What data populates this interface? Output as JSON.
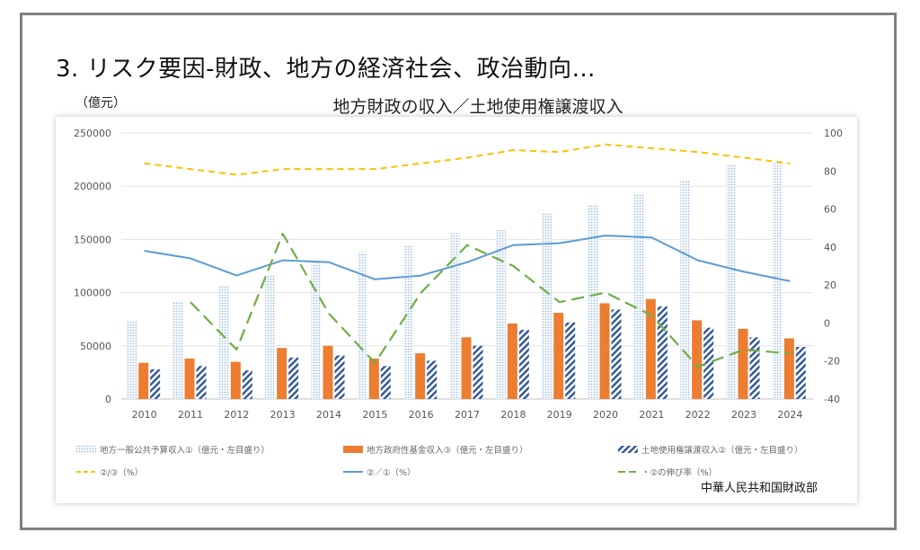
{
  "slide": {
    "heading": "3. リスク要因-財政、地方の経済社会、政治動向…",
    "unit_label": "（億元）",
    "source": "中華人民共和国財政部"
  },
  "colors": {
    "series1": "#9bbbe0",
    "series2": "#ed7d31",
    "series3": "#2f5597",
    "ratio23": "#ffc000",
    "ratio21": "#5b9bd5",
    "growth": "#70ad47"
  },
  "chart_data": {
    "type": "bar",
    "title": "地方財政の収入／土地使用権譲渡収入",
    "categories": [
      "2010",
      "2011",
      "2012",
      "2013",
      "2014",
      "2015",
      "2016",
      "2017",
      "2018",
      "2019",
      "2020",
      "2021",
      "2022",
      "2023",
      "2024"
    ],
    "ylim": [
      0,
      250000
    ],
    "y_ticks": [
      "0",
      "50000",
      "100000",
      "150000",
      "200000",
      "250000"
    ],
    "y2lim": [
      -40,
      100
    ],
    "y2_ticks": [
      "-40",
      "-20",
      "0",
      "20",
      "40",
      "60",
      "80",
      "100"
    ],
    "series": [
      {
        "name": "地方一般公共予算収入①（億元・左目盛り）",
        "type": "bar",
        "axis": "left",
        "values": [
          73000,
          92000,
          106000,
          117000,
          128000,
          138000,
          145000,
          156000,
          159000,
          175000,
          183000,
          193000,
          206000,
          220000,
          222000
        ]
      },
      {
        "name": "地方政府性基金収入③（億元・左目盛り）",
        "type": "bar",
        "axis": "left",
        "values": [
          34000,
          38000,
          35000,
          48000,
          50000,
          38000,
          43000,
          58000,
          71000,
          81000,
          90000,
          94000,
          74000,
          66000,
          57000
        ]
      },
      {
        "name": "土地使用権譲渡収入②（億元・左目盛り）",
        "type": "bar",
        "axis": "left",
        "values": [
          28000,
          31000,
          27000,
          39000,
          41000,
          31000,
          36000,
          50000,
          65000,
          72000,
          84000,
          87000,
          67000,
          58000,
          49000
        ]
      },
      {
        "name": "②/③（%）",
        "type": "line",
        "axis": "right",
        "dash": "dashed",
        "values": [
          84,
          81,
          78,
          81,
          81,
          81,
          84,
          87,
          91,
          90,
          94,
          92,
          90,
          87,
          84
        ]
      },
      {
        "name": "②／①（%）",
        "type": "line",
        "axis": "right",
        "dash": "solid",
        "values": [
          38,
          34,
          25,
          33,
          32,
          23,
          25,
          32,
          41,
          42,
          46,
          45,
          33,
          27,
          22
        ]
      },
      {
        "name": "・②の伸び率（%）",
        "type": "line",
        "axis": "right",
        "dash": "longdash",
        "values": [
          null,
          11,
          -14,
          47,
          5,
          -21,
          16,
          41,
          30,
          11,
          16,
          4,
          -23,
          -14,
          -16
        ]
      }
    ],
    "legend_position": "bottom",
    "grid": "horizontal"
  }
}
